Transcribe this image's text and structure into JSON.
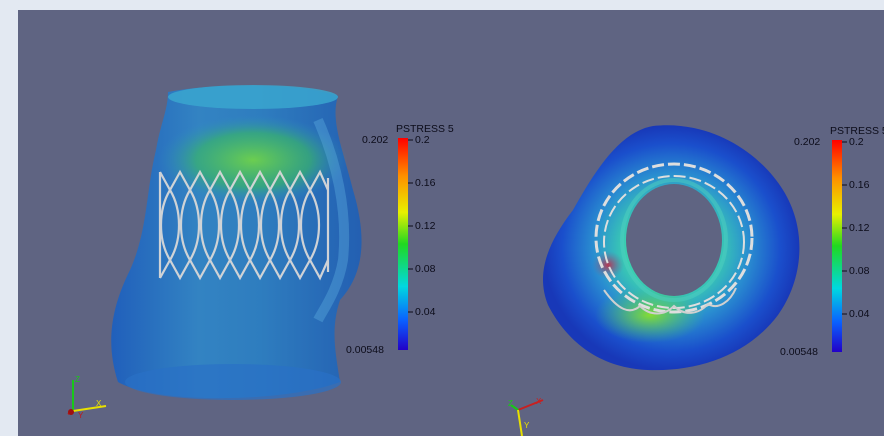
{
  "viewports": [
    {
      "name": "side-view",
      "colorbar": {
        "title": "PSTRESS 5",
        "max_label": "0.202",
        "min_label": "0.00548",
        "ticks": [
          "0.2",
          "0.16",
          "0.12",
          "0.08",
          "0.04"
        ]
      },
      "axes": {
        "x": "X",
        "y": "Y",
        "z": "Z"
      }
    },
    {
      "name": "top-view",
      "colorbar": {
        "title": "PSTRESS 5",
        "max_label": "0.202",
        "min_label": "0.00548",
        "ticks": [
          "0.2",
          "0.16",
          "0.12",
          "0.08",
          "0.04"
        ]
      },
      "axes": {
        "x": "X",
        "y": "Y",
        "z": "Z"
      }
    }
  ],
  "colors": {
    "background": "#5f6482",
    "page": "#e3e9f2",
    "colormap": [
      "#ff0000",
      "#ff8c00",
      "#ffff00",
      "#00dd00",
      "#00e0e0",
      "#0a64ff",
      "#1a00c8"
    ]
  }
}
